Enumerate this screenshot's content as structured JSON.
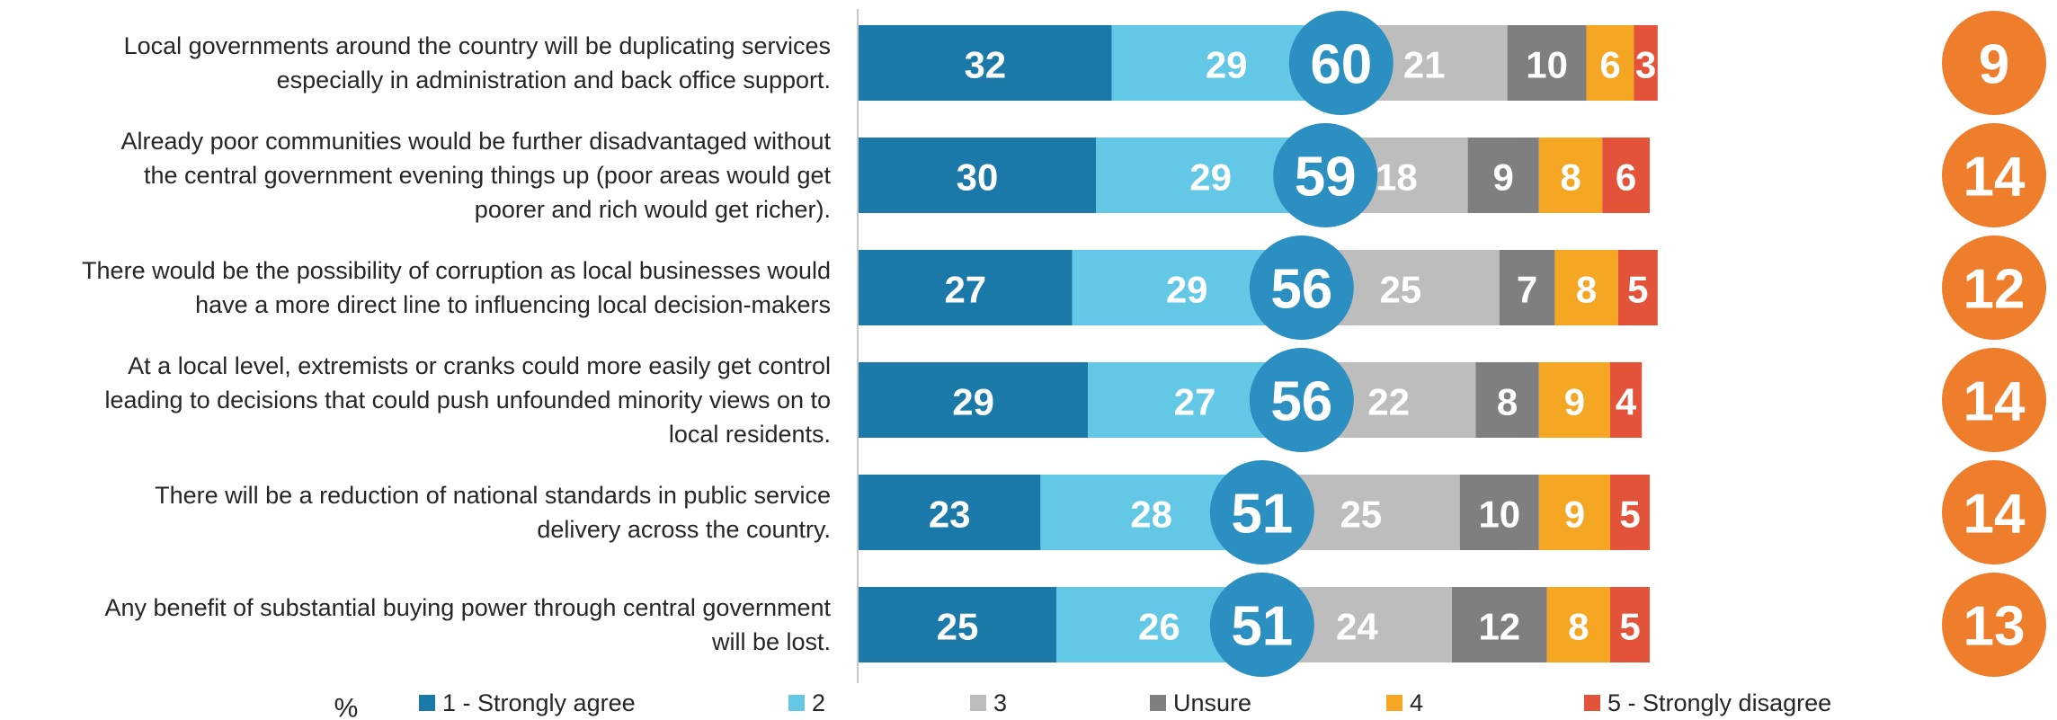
{
  "chart_data": {
    "type": "bar",
    "orientation": "horizontal",
    "stacked": true,
    "unit_label": "%",
    "categories": [
      "Local governments around the country will be duplicating services especially in administration and back office support.",
      "Already poor communities would be further disadvantaged without the central government evening things up (poor areas would get poorer and rich would get richer).",
      "There would be the possibility of corruption as local businesses would have a more direct line to influencing local decision-makers",
      "At a local level, extremists or cranks could more easily get control leading to decisions that could push unfounded minority views on to local residents.",
      "There will be a reduction of national standards in public service delivery across the country.",
      "Any benefit of substantial buying power through central government will be lost."
    ],
    "category_lines": [
      [
        "Local governments around the country will be duplicating services",
        "especially in administration and back office support."
      ],
      [
        "Already poor communities would be further disadvantaged without",
        "the central government evening things up (poor areas would get",
        "poorer and rich would get richer)."
      ],
      [
        "There would be the possibility of corruption as local businesses would",
        "have a more direct line to influencing local decision-makers"
      ],
      [
        "At a local level, extremists or cranks could more easily get control",
        "leading to decisions that could push unfounded minority views on to",
        "local residents."
      ],
      [
        "There will be a reduction of national standards in public service",
        "delivery across the country."
      ],
      [
        "Any benefit of substantial buying power through central government",
        "will be lost."
      ]
    ],
    "series": [
      {
        "name": "1 - Strongly agree",
        "color": "#1a79a8",
        "values": [
          32,
          30,
          27,
          29,
          23,
          25
        ]
      },
      {
        "name": "2",
        "color": "#62c8e6",
        "values": [
          29,
          29,
          29,
          27,
          28,
          26
        ]
      },
      {
        "name": "3",
        "color": "#bdbdbd",
        "values": [
          21,
          18,
          25,
          22,
          25,
          24
        ]
      },
      {
        "name": "Unsure",
        "color": "#7f7f7f",
        "values": [
          10,
          9,
          7,
          8,
          10,
          12
        ]
      },
      {
        "name": "4",
        "color": "#f5a623",
        "values": [
          6,
          8,
          8,
          9,
          9,
          8
        ]
      },
      {
        "name": "5 - Strongly disagree",
        "color": "#e2533a",
        "values": [
          3,
          6,
          5,
          4,
          5,
          5
        ]
      }
    ],
    "net_agree": {
      "color": "#2b8fc1",
      "values": [
        60,
        59,
        56,
        56,
        51,
        51
      ]
    },
    "net_disagree": {
      "color": "#ee7d2c",
      "values": [
        9,
        14,
        12,
        14,
        14,
        13
      ]
    },
    "legend_position": "bottom",
    "grid": false
  }
}
